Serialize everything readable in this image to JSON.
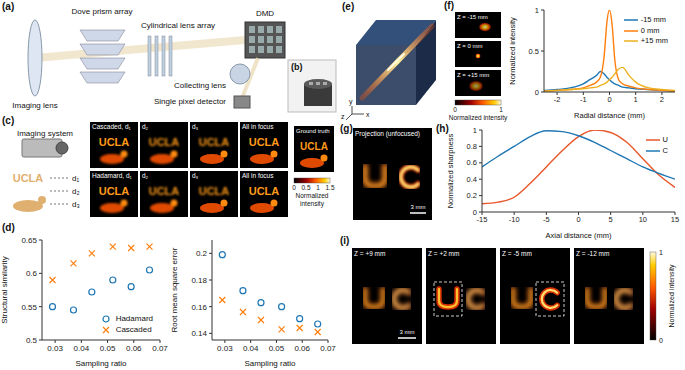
{
  "chart_data": [
    {
      "type": "scatter",
      "x": [
        0.029,
        0.037,
        0.044,
        0.052,
        0.059,
        0.066
      ],
      "x_label": "Sampling ratio",
      "y_label": "Structural similarity",
      "xlim": [
        0.025,
        0.07
      ],
      "xticks": [
        0.03,
        0.04,
        0.05,
        0.06,
        0.07
      ],
      "ylim": [
        0.5,
        0.65
      ],
      "yticks": [
        0.5,
        0.55,
        0.6,
        0.65
      ],
      "legend": "lower right",
      "series": [
        {
          "name": "Hadamard",
          "color": "#1f77b4",
          "marker": "circle",
          "values": [
            0.55,
            0.545,
            0.572,
            0.59,
            0.58,
            0.605
          ]
        },
        {
          "name": "Cascaded",
          "color": "#ff7f0e",
          "marker": "x",
          "values": [
            0.59,
            0.615,
            0.63,
            0.64,
            0.638,
            0.64
          ]
        }
      ]
    },
    {
      "type": "scatter",
      "x": [
        0.029,
        0.037,
        0.044,
        0.052,
        0.059,
        0.066
      ],
      "x_label": "Sampling ratio",
      "y_label": "Root mean square error",
      "xlim": [
        0.025,
        0.07
      ],
      "xticks": [
        0.03,
        0.04,
        0.05,
        0.06,
        0.07
      ],
      "ylim": [
        0.135,
        0.21
      ],
      "yticks": [
        0.14,
        0.16,
        0.18,
        0.2
      ],
      "series": [
        {
          "name": "Hadamard",
          "color": "#1f77b4",
          "marker": "circle",
          "values": [
            0.199,
            0.172,
            0.163,
            0.16,
            0.151,
            0.147
          ]
        },
        {
          "name": "Cascaded",
          "color": "#ff7f0e",
          "marker": "x",
          "values": [
            0.165,
            0.156,
            0.15,
            0.143,
            0.144,
            0.141
          ]
        }
      ]
    },
    {
      "type": "line",
      "x": [
        -2.5,
        -2,
        -1.5,
        -1,
        -0.75,
        -0.5,
        -0.35,
        -0.2,
        -0.1,
        0,
        0.1,
        0.2,
        0.35,
        0.5,
        0.75,
        1,
        1.5,
        2,
        2.5
      ],
      "x_label": "Radial distance (mm)",
      "y_label": "Normalized intensity",
      "xlim": [
        -2.5,
        2.5
      ],
      "xticks": [
        -2,
        -1,
        0,
        1,
        2
      ],
      "ylim": [
        0,
        1
      ],
      "yticks": [
        0,
        0.5,
        1
      ],
      "legend": "upper right",
      "series": [
        {
          "name": "-15 mm",
          "color": "#1f77b4",
          "values": [
            0.02,
            0.03,
            0.05,
            0.1,
            0.15,
            0.2,
            0.25,
            0.22,
            0.18,
            0.15,
            0.12,
            0.1,
            0.08,
            0.06,
            0.05,
            0.04,
            0.03,
            0.02,
            0.01
          ]
        },
        {
          "name": "0 mm",
          "color": "#ff7f0e",
          "values": [
            0.01,
            0.02,
            0.03,
            0.05,
            0.08,
            0.12,
            0.18,
            0.45,
            0.85,
            1,
            0.82,
            0.4,
            0.15,
            0.1,
            0.07,
            0.05,
            0.03,
            0.02,
            0.01
          ]
        },
        {
          "name": "+15 mm",
          "color": "#edb120",
          "values": [
            0.01,
            0.02,
            0.03,
            0.04,
            0.05,
            0.06,
            0.08,
            0.1,
            0.12,
            0.15,
            0.18,
            0.22,
            0.28,
            0.3,
            0.2,
            0.12,
            0.05,
            0.03,
            0.02
          ]
        }
      ]
    },
    {
      "type": "line",
      "x": [
        -15,
        -12.5,
        -10,
        -7.5,
        -5,
        -2.5,
        0,
        2.5,
        5,
        7.5,
        10,
        12.5,
        15
      ],
      "x_label": "Axial distance (mm)",
      "y_label": "Normalized sharpness",
      "xlim": [
        -15,
        15
      ],
      "xticks": [
        -15,
        -10,
        -5,
        0,
        5,
        10,
        15
      ],
      "ylim": [
        0,
        1
      ],
      "yticks": [
        0,
        0.2,
        0.4,
        0.6,
        0.8,
        1
      ],
      "legend": "upper right",
      "series": [
        {
          "name": "U",
          "color": "#e8572a",
          "values": [
            0.1,
            0.12,
            0.18,
            0.35,
            0.55,
            0.75,
            0.92,
            1,
            0.97,
            0.85,
            0.65,
            0.45,
            0.3
          ]
        },
        {
          "name": "C",
          "color": "#1f77b4",
          "values": [
            0.55,
            0.68,
            0.8,
            0.92,
            0.99,
            0.98,
            0.93,
            0.85,
            0.75,
            0.65,
            0.55,
            0.47,
            0.4
          ]
        }
      ]
    }
  ],
  "figure": {
    "a": {
      "label": "(a)",
      "parts": [
        "Imaging lens",
        "Dove prism array",
        "Cylindrical lens array",
        "DMD",
        "Collecting lens",
        "Single pixel detector"
      ]
    },
    "b": {
      "label": "(b)"
    },
    "c": {
      "label": "(c)",
      "imaging_system": "Imaging system",
      "object_text": "UCLA",
      "distances": [
        "d₁",
        "d₂",
        "d₃"
      ],
      "rows": [
        [
          "Cascaded, d₁",
          "d₂",
          "d₃",
          "All in focus"
        ],
        [
          "Hadamard, d₁",
          "d₂",
          "d₃",
          "All in focus"
        ]
      ],
      "ground_truth": "Ground truth",
      "colorbar": {
        "label": "Normalized intensity",
        "range": [
          0,
          1.5
        ],
        "ticks": [
          0,
          0.5,
          1,
          1.5
        ]
      }
    },
    "d": {
      "label": "(d)"
    },
    "e": {
      "label": "(e)",
      "axes": [
        "x",
        "y",
        "z"
      ]
    },
    "f": {
      "label": "(f)",
      "images": [
        "Z = -15 mm",
        "Z = 0 mm",
        "Z = +15 mm"
      ],
      "colorbar": {
        "label": "Normalized intensity",
        "range": [
          0,
          1
        ],
        "ticks": [
          0,
          1
        ]
      }
    },
    "g": {
      "label": "(g)",
      "title": "Projection (unfocused)",
      "scale_bar": "3 mm"
    },
    "h": {
      "label": "(h)"
    },
    "i": {
      "label": "(i)",
      "images": [
        "Z = +9 mm",
        "Z = +2 mm",
        "Z = -5 mm",
        "Z = -12 mm"
      ],
      "scale_bar": "3 mm",
      "colorbar": {
        "label": "Normalized intensity",
        "range": [
          0,
          1
        ],
        "ticks": [
          0,
          1
        ]
      }
    }
  }
}
